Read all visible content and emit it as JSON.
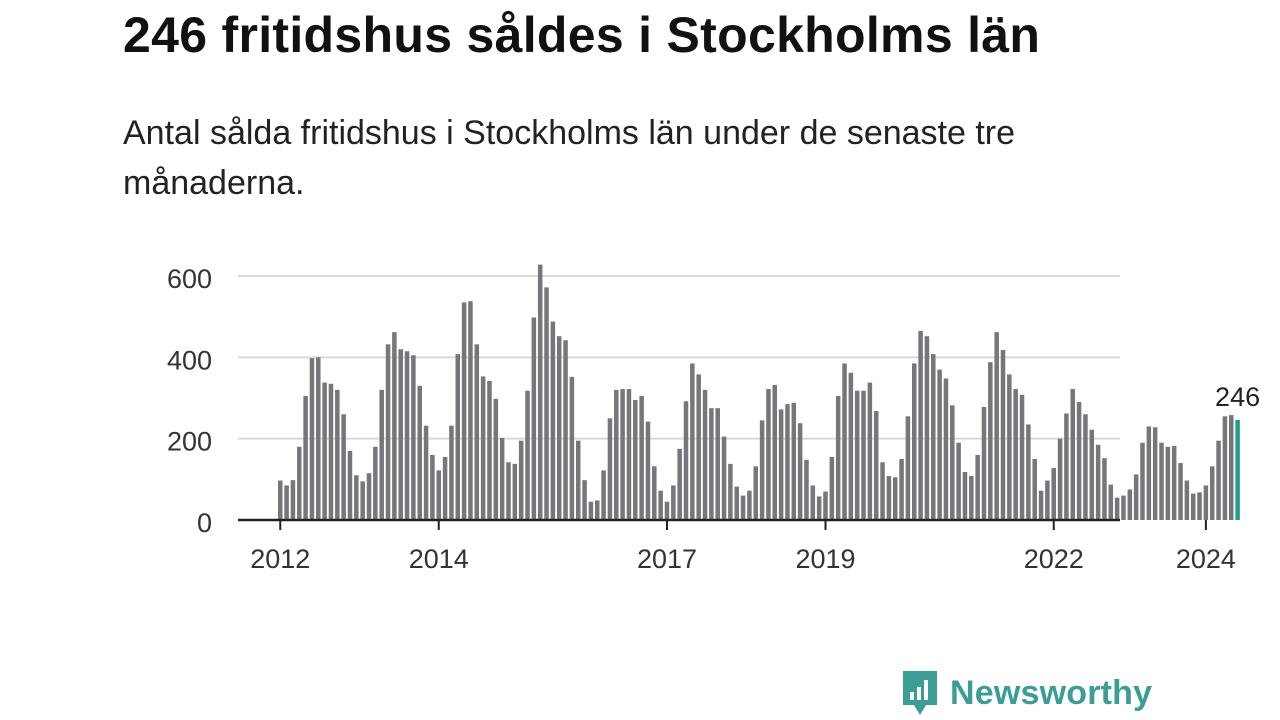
{
  "header": {
    "title": "246 fritidshus såldes i Stockholms län",
    "subtitle": "Antal sålda fritidshus i Stockholms län under de senaste tre månaderna."
  },
  "brand": {
    "name": "Newsworthy",
    "logo_icon": "bar-chart-speech-bubble-icon"
  },
  "colors": {
    "bar": "#77767b",
    "highlight": "#1f9b8f",
    "grid": "#d9d9d9",
    "axis": "#222222",
    "brand": "#3b9d94"
  },
  "chart_data": {
    "type": "bar",
    "title": "246 fritidshus såldes i Stockholms län",
    "xlabel": "",
    "ylabel": "",
    "ylim": [
      0,
      600
    ],
    "yticks": [
      0,
      200,
      400,
      600
    ],
    "grid": true,
    "start": "2012-01",
    "xtick_labels": [
      "2012",
      "2014",
      "2017",
      "2019",
      "2022",
      "2024"
    ],
    "xtick_index": [
      0,
      25,
      61,
      86,
      122,
      146
    ],
    "values": [
      97,
      85,
      98,
      180,
      305,
      398,
      400,
      338,
      335,
      320,
      260,
      170,
      110,
      95,
      115,
      180,
      320,
      432,
      462,
      420,
      415,
      405,
      330,
      232,
      160,
      122,
      155,
      232,
      408,
      535,
      538,
      432,
      353,
      342,
      298,
      202,
      142,
      138,
      195,
      318,
      498,
      628,
      572,
      488,
      452,
      442,
      352,
      195,
      98,
      45,
      48,
      122,
      250,
      320,
      322,
      322,
      295,
      305,
      242,
      132,
      72,
      45,
      85,
      175,
      292,
      385,
      358,
      320,
      275,
      275,
      205,
      138,
      82,
      60,
      72,
      132,
      245,
      322,
      332,
      272,
      285,
      288,
      238,
      148,
      85,
      58,
      70,
      155,
      305,
      385,
      362,
      318,
      318,
      338,
      268,
      142,
      108,
      105,
      150,
      255,
      385,
      465,
      452,
      408,
      370,
      348,
      282,
      190,
      118,
      108,
      160,
      278,
      388,
      462,
      418,
      358,
      322,
      308,
      235,
      150,
      72,
      97,
      128,
      200,
      262,
      322,
      290,
      260,
      222,
      185,
      152,
      87,
      55,
      60,
      75,
      112,
      190,
      230,
      228,
      190,
      180,
      182,
      140,
      97,
      65,
      68,
      85,
      132,
      195,
      255,
      258,
      246
    ],
    "annotation": {
      "label": "246",
      "value": 246
    }
  }
}
